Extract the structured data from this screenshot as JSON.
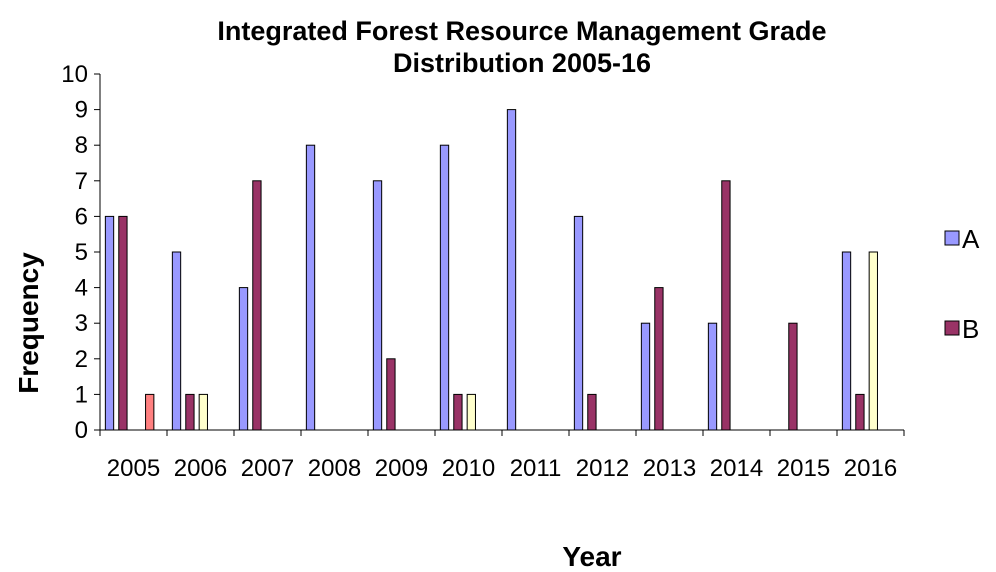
{
  "chart_data": {
    "type": "bar",
    "title": "Integrated Forest Resource Management Grade Distribution 2005-16",
    "title_lines": [
      "Integrated Forest Resource Management Grade",
      "Distribution 2005-16"
    ],
    "xlabel": "Year",
    "ylabel": "Frequency",
    "ylim": [
      0,
      10
    ],
    "yticks": [
      "0",
      "1",
      "2",
      "3",
      "4",
      "5",
      "6",
      "7",
      "8",
      "9",
      "10"
    ],
    "categories": [
      "2005",
      "2006",
      "2007",
      "2008",
      "2009",
      "2010",
      "2011",
      "2012",
      "2013",
      "2014",
      "2015",
      "2016"
    ],
    "grid": false,
    "legend_position": "right",
    "series": [
      {
        "name": "A",
        "color": "#9999FF",
        "values": [
          6,
          5,
          4,
          8,
          7,
          8,
          9,
          6,
          3,
          3,
          0,
          5
        ]
      },
      {
        "name": "B",
        "color": "#993366",
        "values": [
          6,
          1,
          7,
          0,
          2,
          1,
          0,
          1,
          4,
          7,
          3,
          1
        ]
      },
      {
        "name": "",
        "color": "#FFFFCC",
        "values": [
          0,
          1,
          0,
          0,
          0,
          1,
          0,
          0,
          0,
          0,
          0,
          5
        ]
      },
      {
        "name": "",
        "color": "#FF8080",
        "values": [
          1,
          0,
          0,
          0,
          0,
          0,
          0,
          0,
          0,
          0,
          0,
          0
        ]
      }
    ],
    "legend": [
      {
        "label": "A",
        "color": "#9999FF"
      },
      {
        "label": "B",
        "color": "#993366"
      }
    ]
  }
}
